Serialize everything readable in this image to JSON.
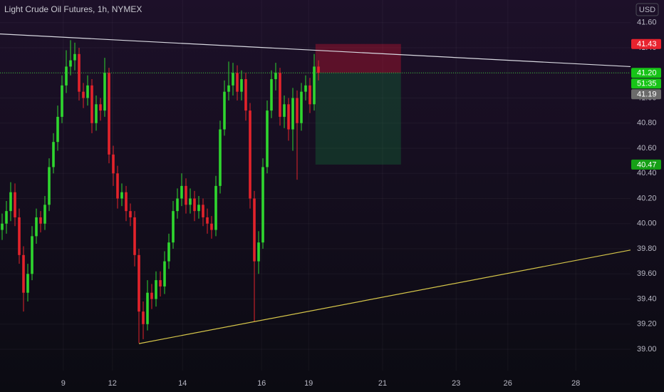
{
  "chart_data": {
    "type": "candlestick",
    "title": "Light Crude Oil Futures, 1h, NYMEX",
    "currency": "USD",
    "up_color": "#2fd62f",
    "down_color": "#e3232b",
    "grid": true,
    "open": [
      39.95,
      40.0,
      40.1,
      40.25,
      40.05,
      39.75,
      39.45,
      39.6,
      39.9,
      40.05,
      40.0,
      40.15,
      40.45,
      40.65,
      40.85,
      41.1,
      41.25,
      41.3,
      41.35,
      41.05,
      41.0,
      41.1,
      40.8,
      40.95,
      40.9,
      41.2,
      40.55,
      40.4,
      40.2,
      40.25,
      40.1,
      40.05,
      39.75,
      39.3,
      39.2,
      39.45,
      39.4,
      39.55,
      39.5,
      39.7,
      39.85,
      40.1,
      40.2,
      40.3,
      40.15,
      40.2,
      40.1,
      40.15,
      40.05,
      40.0,
      39.95,
      40.3,
      40.75,
      41.05,
      41.1,
      41.2,
      41.05,
      41.15,
      40.9,
      40.2,
      39.7,
      39.85,
      40.45,
      40.9,
      41.15,
      41.2,
      40.85,
      40.95,
      40.75,
      41.0,
      40.8,
      41.05,
      41.1,
      40.95,
      41.25
    ],
    "high": [
      40.08,
      40.18,
      40.33,
      40.32,
      40.12,
      39.82,
      39.68,
      39.98,
      40.12,
      40.1,
      40.22,
      40.52,
      40.72,
      40.94,
      41.18,
      41.38,
      41.46,
      41.44,
      41.4,
      41.12,
      41.18,
      41.15,
      41.02,
      41.0,
      41.32,
      41.24,
      40.62,
      40.46,
      40.32,
      40.3,
      40.16,
      40.1,
      39.8,
      39.38,
      39.55,
      39.52,
      39.62,
      39.62,
      39.78,
      39.92,
      40.18,
      40.28,
      40.4,
      40.36,
      40.28,
      40.26,
      40.22,
      40.2,
      40.12,
      40.06,
      40.38,
      40.82,
      41.14,
      41.29,
      41.28,
      41.26,
      41.22,
      41.2,
      40.96,
      40.26,
      39.94,
      40.52,
      40.98,
      41.22,
      41.28,
      41.24,
      41.02,
      41.0,
      41.08,
      41.06,
      41.12,
      41.18,
      41.16,
      41.35,
      41.3
    ],
    "low": [
      39.87,
      39.92,
      40.02,
      39.98,
      39.68,
      39.3,
      39.38,
      39.55,
      39.84,
      39.93,
      39.95,
      40.1,
      40.4,
      40.58,
      40.8,
      41.04,
      41.18,
      41.22,
      40.98,
      40.92,
      40.94,
      40.72,
      40.74,
      40.82,
      40.85,
      40.48,
      40.3,
      40.12,
      40.14,
      40.02,
      39.98,
      39.66,
      39.05,
      39.08,
      39.15,
      39.32,
      39.34,
      39.42,
      39.44,
      39.64,
      39.8,
      40.04,
      40.14,
      40.08,
      40.08,
      40.02,
      40.04,
      39.98,
      39.92,
      39.88,
      39.9,
      40.24,
      40.7,
      40.98,
      41.02,
      40.98,
      40.98,
      40.82,
      40.12,
      39.22,
      39.6,
      39.8,
      40.4,
      40.84,
      41.06,
      40.78,
      40.76,
      40.66,
      40.58,
      40.35,
      40.74,
      40.98,
      40.88,
      40.9,
      41.14
    ],
    "close": [
      40.0,
      40.1,
      40.25,
      40.05,
      39.75,
      39.45,
      39.6,
      39.9,
      40.05,
      40.0,
      40.15,
      40.45,
      40.65,
      40.85,
      41.1,
      41.25,
      41.3,
      41.35,
      41.05,
      41.0,
      41.1,
      40.8,
      40.95,
      40.9,
      41.2,
      40.55,
      40.4,
      40.2,
      40.25,
      40.1,
      40.05,
      39.75,
      39.3,
      39.2,
      39.45,
      39.4,
      39.55,
      39.5,
      39.7,
      39.85,
      40.1,
      40.2,
      40.3,
      40.15,
      40.2,
      40.1,
      40.15,
      40.05,
      40.0,
      39.95,
      40.3,
      40.75,
      41.05,
      41.1,
      41.2,
      41.05,
      41.15,
      40.9,
      40.2,
      39.7,
      39.85,
      40.45,
      40.9,
      41.15,
      41.2,
      40.85,
      40.95,
      40.75,
      41.0,
      40.8,
      41.05,
      41.1,
      40.95,
      41.25,
      41.2
    ],
    "xlim": [
      -0.5,
      147
    ],
    "xticks": [
      {
        "value": 14.3,
        "label": "9"
      },
      {
        "value": 25.8,
        "label": "12"
      },
      {
        "value": 42.2,
        "label": "14"
      },
      {
        "value": 60.7,
        "label": "16"
      },
      {
        "value": 71.7,
        "label": "19"
      },
      {
        "value": 89.0,
        "label": "21"
      },
      {
        "value": 106.2,
        "label": "23"
      },
      {
        "value": 118.3,
        "label": "26"
      },
      {
        "value": 134.2,
        "label": "28"
      }
    ],
    "ylim": [
      38.83,
      41.78
    ],
    "yticks": [
      {
        "value": 39,
        "label": "39.00"
      },
      {
        "value": 39.2,
        "label": "39.20"
      },
      {
        "value": 39.4,
        "label": "39.40"
      },
      {
        "value": 39.6,
        "label": "39.60"
      },
      {
        "value": 39.8,
        "label": "39.80"
      },
      {
        "value": 40,
        "label": "40.00"
      },
      {
        "value": 40.2,
        "label": "40.20"
      },
      {
        "value": 40.4,
        "label": "40.40"
      },
      {
        "value": 40.6,
        "label": "40.60"
      },
      {
        "value": 40.8,
        "label": "40.80"
      },
      {
        "value": 41,
        "label": "41.00"
      },
      {
        "value": 41.2,
        "label": "41.20"
      },
      {
        "value": 41.4,
        "label": "41.40"
      },
      {
        "value": 41.6,
        "label": "41.60"
      }
    ],
    "trendlines": [
      {
        "color": "#d8d8e0",
        "x": [
          -0.5,
          147
        ],
        "y": [
          41.51,
          41.25
        ]
      },
      {
        "color": "#d6c64a",
        "x": [
          32,
          147
        ],
        "y": [
          39.045,
          39.79
        ]
      }
    ],
    "position": {
      "x": [
        73.3,
        93.3
      ],
      "entry": 41.2,
      "stop": 41.43,
      "target": 40.47,
      "loss_color": "rgba(200,20,50,0.38)",
      "profit_color": "rgba(20,120,60,0.32)"
    },
    "last_price_line": {
      "value": 41.2,
      "color": "#36c236"
    },
    "price_labels": [
      {
        "value": 41.43,
        "label": "41.43",
        "color": "#e8232e"
      },
      {
        "value": 41.2,
        "label": "41.20",
        "color": "#17c417",
        "countdown": "51:35"
      },
      {
        "value": 41.19,
        "label": "41.19",
        "color": "#6b6b6b"
      },
      {
        "value": 40.47,
        "label": "40.47",
        "color": "#16a016"
      }
    ]
  }
}
